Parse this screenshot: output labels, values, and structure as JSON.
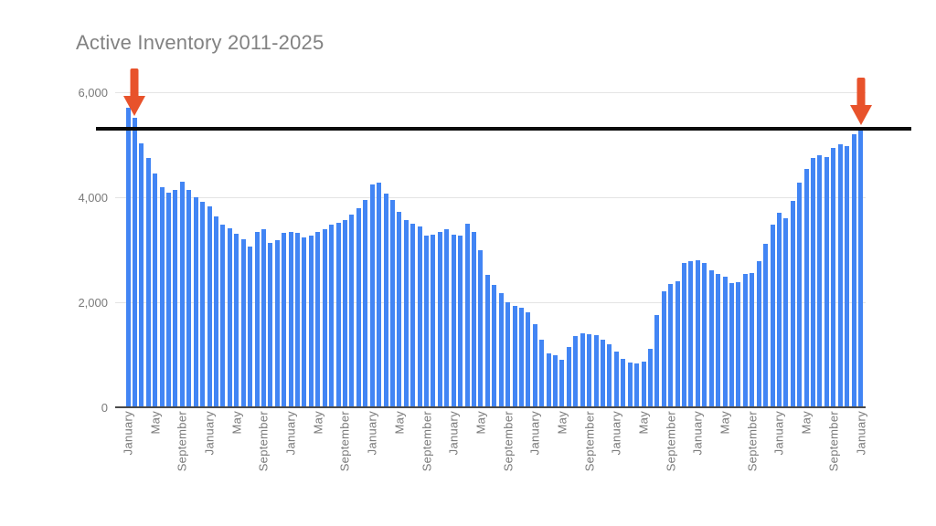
{
  "chart_data": {
    "type": "bar",
    "title": "Active Inventory 2011-2025",
    "xlabel": "",
    "ylabel": "",
    "ylim": [
      0,
      6000
    ],
    "grid": true,
    "legend": "none",
    "bar_color": "#4285f4",
    "y_ticks": [
      {
        "label": "6,000",
        "value": 6000
      },
      {
        "label": "4,000",
        "value": 4000
      },
      {
        "label": "2,000",
        "value": 2000
      },
      {
        "label": "0",
        "value": 0
      }
    ],
    "x_tick_every_n_bars": 4,
    "x_tick_labels": [
      "January",
      "May",
      "September",
      "January",
      "May",
      "September",
      "January",
      "May",
      "September",
      "January",
      "May",
      "September",
      "January",
      "May",
      "September",
      "January",
      "May",
      "September",
      "January",
      "May",
      "September",
      "January",
      "May",
      "September",
      "January",
      "May",
      "September",
      "January"
    ],
    "values": [
      5700,
      5520,
      5030,
      4740,
      4450,
      4190,
      4090,
      4140,
      4290,
      4140,
      4000,
      3910,
      3820,
      3640,
      3480,
      3410,
      3300,
      3200,
      3060,
      3340,
      3380,
      3120,
      3180,
      3320,
      3340,
      3320,
      3230,
      3260,
      3340,
      3380,
      3470,
      3510,
      3560,
      3670,
      3790,
      3950,
      4240,
      4270,
      4060,
      3940,
      3720,
      3560,
      3490,
      3440,
      3260,
      3290,
      3340,
      3380,
      3280,
      3260,
      3490,
      3340,
      2990,
      2520,
      2330,
      2170,
      2000,
      1930,
      1890,
      1810,
      1575,
      1280,
      1020,
      985,
      895,
      1140,
      1350,
      1400,
      1385,
      1370,
      1280,
      1195,
      1055,
      915,
      845,
      825,
      860,
      1105,
      1750,
      2200,
      2340,
      2400,
      2740,
      2780,
      2800,
      2740,
      2600,
      2530,
      2480,
      2360,
      2380,
      2530,
      2550,
      2780,
      3110,
      3470,
      3700,
      3600,
      3930,
      4280,
      4540,
      4750,
      4800,
      4765,
      4940,
      5010,
      4975,
      5200,
      5340
    ],
    "annotations": {
      "hline": {
        "value": 5310,
        "color": "#0a0a0a"
      },
      "arrows": [
        {
          "points_at": "first-bars",
          "bar_index": 1,
          "color": "#e8522b"
        },
        {
          "points_at": "last-bar",
          "bar_index": 108,
          "color": "#e8522b"
        }
      ]
    }
  },
  "colors": {
    "title": "#828282",
    "axis_label": "#7a7a7a",
    "gridline": "#e4e4e4",
    "baseline": "#4a4a4a",
    "background": "#ffffff"
  }
}
